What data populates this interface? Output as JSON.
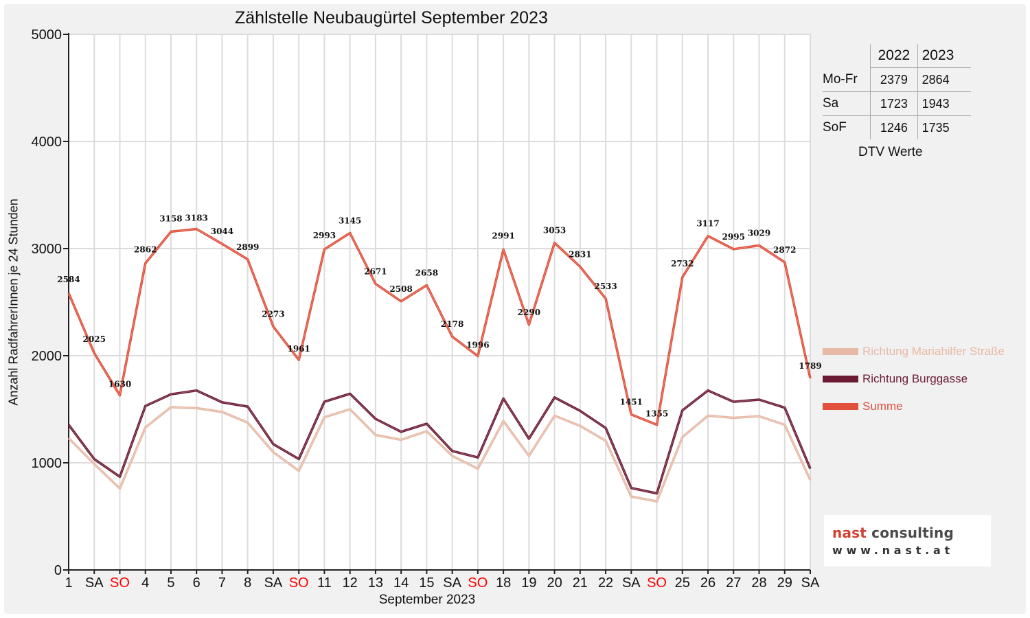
{
  "chart_data": {
    "type": "line",
    "title": "Zählstelle Neubaugürtel September 2023",
    "xlabel": "September 2023",
    "ylabel": "Anzahl RadfahrerInnen je 24 Stunden",
    "ylim": [
      0,
      5000
    ],
    "yticks": [
      0,
      1000,
      2000,
      3000,
      4000,
      5000
    ],
    "grid": true,
    "legend_position": "right",
    "categories": [
      "1",
      "SA",
      "SO",
      "4",
      "5",
      "6",
      "7",
      "8",
      "SA",
      "SO",
      "11",
      "12",
      "13",
      "14",
      "15",
      "SA",
      "SO",
      "18",
      "19",
      "20",
      "21",
      "22",
      "SA",
      "SO",
      "25",
      "26",
      "27",
      "28",
      "29",
      "SA"
    ],
    "sunday_color": "#ff0000",
    "series": [
      {
        "name": "Richtung Mariahilfer Straße",
        "color": "#e6b9a6",
        "values": [
          1230,
          990,
          760,
          1330,
          1520,
          1510,
          1475,
          1375,
          1100,
          925,
          1425,
          1500,
          1260,
          1215,
          1295,
          1065,
          945,
          1390,
          1065,
          1440,
          1345,
          1205,
          685,
          640,
          1240,
          1440,
          1420,
          1435,
          1355,
          840
        ]
      },
      {
        "name": "Richtung Burggasse",
        "color": "#6b1a33",
        "values": [
          1355,
          1035,
          870,
          1530,
          1640,
          1675,
          1565,
          1525,
          1175,
          1035,
          1570,
          1645,
          1410,
          1290,
          1365,
          1110,
          1050,
          1600,
          1225,
          1610,
          1485,
          1325,
          765,
          715,
          1490,
          1675,
          1570,
          1590,
          1515,
          945
        ]
      },
      {
        "name": "Summe",
        "color": "#e0503c",
        "values": [
          2584,
          2025,
          1630,
          2862,
          3158,
          3183,
          3044,
          2899,
          2273,
          1961,
          2993,
          3145,
          2671,
          2508,
          2658,
          2178,
          1996,
          2991,
          2290,
          3053,
          2831,
          2533,
          1451,
          1355,
          2732,
          3117,
          2995,
          3029,
          2872,
          1789
        ],
        "data_labels": true
      }
    ]
  },
  "dtv_table": {
    "caption": "DTV Werte",
    "columns": [
      "",
      "2022",
      "2023"
    ],
    "rows": [
      {
        "label": "Mo-Fr",
        "v2022": "2379",
        "v2023": "2864"
      },
      {
        "label": "Sa",
        "v2022": "1723",
        "v2023": "1943"
      },
      {
        "label": "SoF",
        "v2022": "1246",
        "v2023": "1735"
      }
    ]
  },
  "logo": {
    "brand_part1": "nast",
    "brand_part2": "consulting",
    "url": "www.nast.at"
  }
}
